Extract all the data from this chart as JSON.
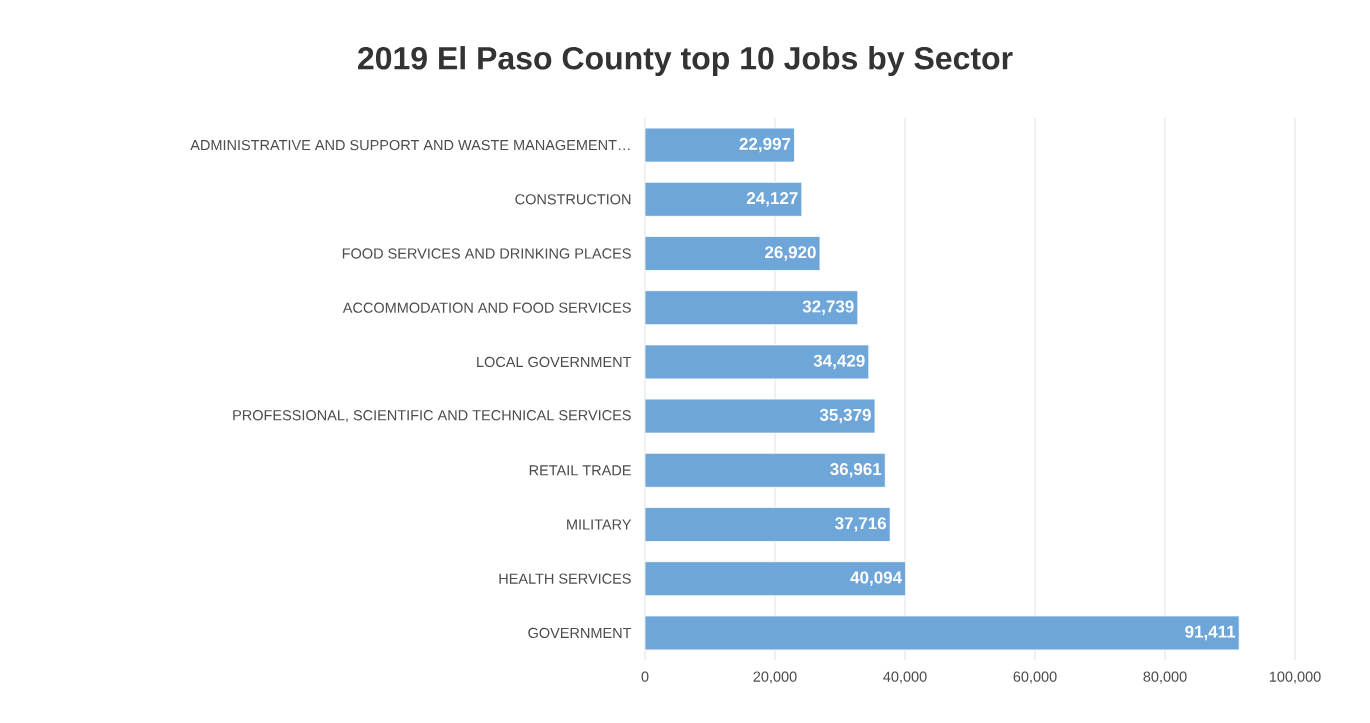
{
  "chart_data": {
    "type": "bar",
    "orientation": "horizontal",
    "title": "2019 El Paso County top 10 Jobs by Sector",
    "categories": [
      "ADMINISTRATIVE AND SUPPORT AND WASTE MANAGEMENT…",
      "CONSTRUCTION",
      "FOOD SERVICES AND DRINKING PLACES",
      "ACCOMMODATION AND FOOD SERVICES",
      "LOCAL GOVERNMENT",
      "PROFESSIONAL, SCIENTIFIC AND TECHNICAL SERVICES",
      "RETAIL TRADE",
      "MILITARY",
      "HEALTH SERVICES",
      "GOVERNMENT"
    ],
    "values": [
      22997,
      24127,
      26920,
      32739,
      34429,
      35379,
      36961,
      37716,
      40094,
      91411
    ],
    "value_labels": [
      "22,997",
      "24,127",
      "26,920",
      "32,739",
      "34,429",
      "35,379",
      "36,961",
      "37,716",
      "40,094",
      "91,411"
    ],
    "color": "#6fa6d9",
    "xlim": [
      0,
      100000
    ],
    "xticks": [
      0,
      {
        "value": 20000,
        "label": "20,000"
      },
      {
        "value": 40000,
        "label": "40,000"
      },
      {
        "value": 60000,
        "label": "60,000"
      },
      {
        "value": 80000,
        "label": "80,000"
      },
      {
        "value": 100000,
        "label": "100,000"
      }
    ],
    "grid": "x"
  }
}
